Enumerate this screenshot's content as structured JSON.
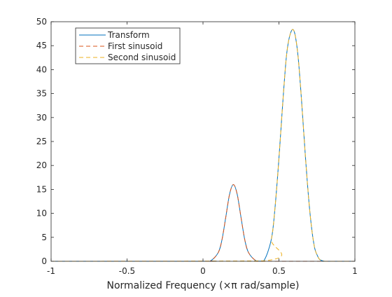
{
  "chart_data": {
    "type": "line",
    "title": "",
    "xlabel": "Normalized Frequency (×π rad/sample)",
    "ylabel": "",
    "xlim": [
      -1,
      1
    ],
    "ylim": [
      0,
      50
    ],
    "x_ticks": [
      -1,
      -0.5,
      0,
      0.5,
      1
    ],
    "x_tick_labels": [
      "-1",
      "-0.5",
      "0",
      "0.5",
      "1"
    ],
    "y_ticks": [
      0,
      5,
      10,
      15,
      20,
      25,
      30,
      35,
      40,
      45,
      50
    ],
    "y_tick_labels": [
      "0",
      "5",
      "10",
      "15",
      "20",
      "25",
      "30",
      "35",
      "40",
      "45",
      "50"
    ],
    "grid": false,
    "legend_position": "top-left",
    "series": [
      {
        "name": "Transform",
        "color": "#0072BD",
        "style": "solid",
        "x": [
          -1,
          0.0,
          0.05,
          0.1,
          0.125,
          0.15,
          0.175,
          0.2,
          0.225,
          0.25,
          0.275,
          0.3,
          0.35,
          0.4,
          0.45,
          0.475,
          0.5,
          0.525,
          0.55,
          0.575,
          0.6,
          0.625,
          0.65,
          0.675,
          0.7,
          0.725,
          0.75,
          0.8,
          1
        ],
        "y": [
          0,
          0,
          0.1,
          1.8,
          4.5,
          9.2,
          14.0,
          16.0,
          14.0,
          9.2,
          4.5,
          1.8,
          0.1,
          0.1,
          4.6,
          11.5,
          21.5,
          33.0,
          43.0,
          47.5,
          48.0,
          43.0,
          33.0,
          21.5,
          11.5,
          4.6,
          1.4,
          0,
          0
        ]
      },
      {
        "name": "First sinusoid",
        "color": "#D95319",
        "style": "dashed",
        "x": [
          -1,
          0.0,
          0.05,
          0.1,
          0.125,
          0.15,
          0.175,
          0.2,
          0.225,
          0.25,
          0.275,
          0.3,
          0.35,
          0.4,
          1
        ],
        "y": [
          0,
          0,
          0.1,
          1.8,
          4.5,
          9.2,
          14.0,
          16.0,
          14.0,
          9.2,
          4.5,
          1.8,
          0.1,
          0,
          0
        ]
      },
      {
        "name": "Second sinusoid",
        "color": "#EDB120",
        "style": "dashed",
        "x": [
          -1,
          0.4,
          0.45,
          0.475,
          0.5,
          0.525,
          0.55,
          0.575,
          0.6,
          0.625,
          0.65,
          0.675,
          0.7,
          0.725,
          0.75,
          0.8,
          1
        ],
        "y": [
          0,
          0.1,
          4.6,
          11.5,
          21.5,
          33.0,
          43.0,
          47.5,
          48.0,
          43.0,
          33.0,
          21.5,
          11.5,
          4.6,
          1.4,
          0,
          0
        ]
      }
    ]
  }
}
